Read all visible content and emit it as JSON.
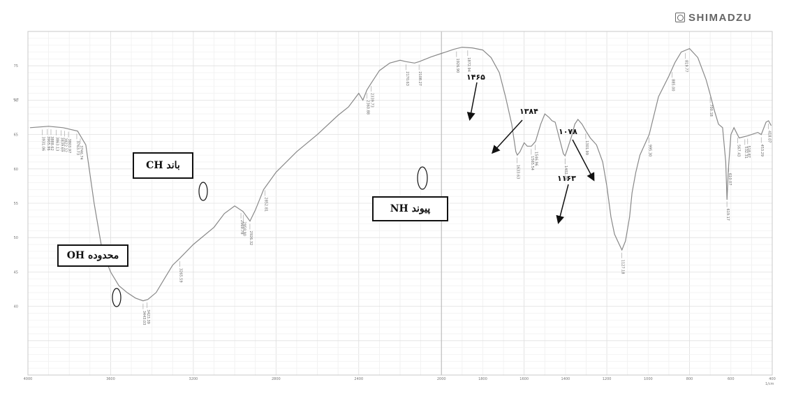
{
  "brand": {
    "name": "SHIMADZU",
    "logo_icon": "shimadzu-logo-icon"
  },
  "chart_data": {
    "type": "line",
    "xlabel": "1/cm",
    "ylabel": "%T",
    "xlim": [
      4000,
      400
    ],
    "ylim": [
      30,
      80
    ],
    "x_ticks": [
      "4000",
      "3600",
      "3200",
      "2800",
      "2400",
      "2000",
      "1800",
      "1600",
      "1400",
      "1200",
      "1000",
      "800",
      "600",
      "400"
    ],
    "y_ticks": [
      "40",
      "45",
      "50",
      "55",
      "60",
      "65",
      "70",
      "75"
    ],
    "grid": true,
    "series": [
      {
        "x": [
          3990,
          3900,
          3830,
          3760,
          3720,
          3680,
          3640,
          3600,
          3560,
          3520,
          3480,
          3443,
          3420,
          3380,
          3340,
          3300,
          3265,
          3200,
          3100,
          3050,
          3000,
          2960,
          2926,
          2900,
          2860,
          2800,
          2700,
          2600,
          2500,
          2450,
          2400,
          2380,
          2360,
          2339,
          2300,
          2250,
          2200,
          2170,
          2130,
          2108,
          2050,
          2000,
          1940,
          1900,
          1850,
          1800,
          1760,
          1720,
          1690,
          1660,
          1640,
          1633,
          1620,
          1600,
          1585,
          1565,
          1545,
          1520,
          1500,
          1480,
          1465,
          1450,
          1430,
          1410,
          1402,
          1395,
          1384,
          1370,
          1355,
          1340,
          1320,
          1301,
          1280,
          1250,
          1220,
          1200,
          1180,
          1163,
          1140,
          1127,
          1110,
          1090,
          1078,
          1060,
          1040,
          995,
          950,
          900,
          870,
          840,
          800,
          760,
          720,
          700,
          680,
          660,
          640,
          625,
          619,
          612,
          600,
          585,
          560,
          520,
          470,
          453,
          430,
          418,
          405
        ],
        "y": [
          66.0,
          66.2,
          66.0,
          65.5,
          63.5,
          55.0,
          48.0,
          45.0,
          43.0,
          42.0,
          41.2,
          40.8,
          41.0,
          42.0,
          44.0,
          46.0,
          47.0,
          49.0,
          51.5,
          53.5,
          54.6,
          53.8,
          52.4,
          54.0,
          57.0,
          59.5,
          62.5,
          65.0,
          67.8,
          69.0,
          71.0,
          70.0,
          71.5,
          72.5,
          74.3,
          75.4,
          75.8,
          75.6,
          75.4,
          75.6,
          76.3,
          76.8,
          77.4,
          77.7,
          77.6,
          77.3,
          76.2,
          74.0,
          70.5,
          66.5,
          62.5,
          62.0,
          62.5,
          63.8,
          63.3,
          63.3,
          64.0,
          66.5,
          68.0,
          67.5,
          67.0,
          66.8,
          64.5,
          62.2,
          61.9,
          62.5,
          63.5,
          64.8,
          66.5,
          67.2,
          66.5,
          65.5,
          64.5,
          63.5,
          61.0,
          57.5,
          53.0,
          50.5,
          49.0,
          48.2,
          49.5,
          53.0,
          56.5,
          59.5,
          62.0,
          65.0,
          70.5,
          73.5,
          75.5,
          77.0,
          77.5,
          76.2,
          73.0,
          70.8,
          68.5,
          66.5,
          66.0,
          61.0,
          55.5,
          60.0,
          65.0,
          66.0,
          64.5,
          64.8,
          65.3,
          65.0,
          66.8,
          67.0,
          66.3
        ]
      }
    ],
    "peak_labels": [
      {
        "x": 3931.06,
        "text": "3931.06"
      },
      {
        "x": 3905.96,
        "text": "3905.96"
      },
      {
        "x": 3888.62,
        "text": "3888.62"
      },
      {
        "x": 3863.13,
        "text": "3863.13"
      },
      {
        "x": 3839.69,
        "text": "3839.69"
      },
      {
        "x": 3822.12,
        "text": "3822.12"
      },
      {
        "x": 3803.97,
        "text": "3803.97"
      },
      {
        "x": 3763.73,
        "text": "3763.73"
      },
      {
        "x": 3746.74,
        "text": "3746.74"
      },
      {
        "x": 3443.03,
        "text": "3443.03"
      },
      {
        "x": 3423.39,
        "text": "3423.39"
      },
      {
        "x": 3265.59,
        "text": "3265.59"
      },
      {
        "x": 2969.78,
        "text": "2969.78"
      },
      {
        "x": 2958.9,
        "text": "2958.90"
      },
      {
        "x": 2926.32,
        "text": "2926.32"
      },
      {
        "x": 2852.81,
        "text": "2852.81"
      },
      {
        "x": 2360.88,
        "text": "2360.88"
      },
      {
        "x": 2339.73,
        "text": "2339.73"
      },
      {
        "x": 2170.63,
        "text": "2170.63"
      },
      {
        "x": 2108.27,
        "text": "2108.27"
      },
      {
        "x": 1926.9,
        "text": "1926.90"
      },
      {
        "x": 1872.94,
        "text": "1872.94"
      },
      {
        "x": 1633.63,
        "text": "1633.63"
      },
      {
        "x": 1565.54,
        "text": "1565.54"
      },
      {
        "x": 1546.96,
        "text": "1546.96"
      },
      {
        "x": 1402.3,
        "text": "1402.30"
      },
      {
        "x": 1301.99,
        "text": "1301.99"
      },
      {
        "x": 1127.18,
        "text": "1127.18"
      },
      {
        "x": 995.3,
        "text": "995.30"
      },
      {
        "x": 885.0,
        "text": "885.00"
      },
      {
        "x": 819.77,
        "text": "819.77"
      },
      {
        "x": 700.18,
        "text": "700.18"
      },
      {
        "x": 619.17,
        "text": "619.17"
      },
      {
        "x": 610.07,
        "text": "610.07"
      },
      {
        "x": 567.43,
        "text": "567.43"
      },
      {
        "x": 532.31,
        "text": "532.31"
      },
      {
        "x": 518.87,
        "text": "518.87"
      },
      {
        "x": 453.29,
        "text": "453.29"
      },
      {
        "x": 418.07,
        "text": "418.07"
      }
    ],
    "annotations": [
      {
        "name": "oh-region-callout",
        "text": "محدوده OH",
        "target_x": 3443
      },
      {
        "name": "ch-band-callout",
        "text": "باند CH",
        "target_x": 2852
      },
      {
        "name": "nh-bond-callout",
        "text": "پیوند NH",
        "target_x": 1633
      }
    ],
    "arrow_labels": [
      {
        "name": "arrow-1465",
        "text": "۱۴۶۵",
        "x": 1465
      },
      {
        "name": "arrow-1384",
        "text": "۱۳۸۴",
        "x": 1384
      },
      {
        "name": "arrow-1078",
        "text": "۱۰۷۸",
        "x": 1078
      },
      {
        "name": "arrow-1163",
        "text": "۱۱۶۳",
        "x": 1163
      }
    ]
  }
}
